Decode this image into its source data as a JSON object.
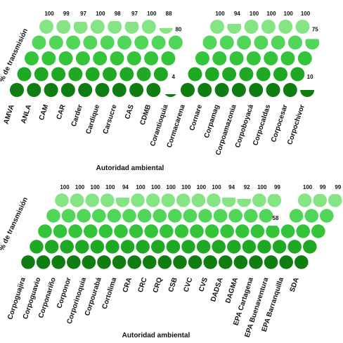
{
  "chart_data": [
    {
      "type": "dotcolumn",
      "xlabel": "Autoridad ambiental",
      "ylabel": "% de transmisión",
      "ylim": [
        0,
        100
      ],
      "colors": [
        "#0f7d12",
        "#1fa824",
        "#33c43a",
        "#52d65a",
        "#85e585"
      ],
      "categories": [
        "AMVA",
        "ANLA",
        "CAM",
        "CAR",
        "Carder",
        "Cardique",
        "Carsucre",
        "CAS",
        "CDMB",
        "Corantioquia",
        "Cormacarena",
        "Cornare",
        "Corpamag",
        "Corpoamazonia",
        "Corpoboyacá",
        "Corpocaldas",
        "Corpocesar",
        "Corpochivor"
      ],
      "values": [
        100,
        99,
        97,
        100,
        98,
        97,
        100,
        88,
        80,
        4,
        100,
        94,
        100,
        100,
        100,
        100,
        75,
        10
      ]
    },
    {
      "type": "dotcolumn",
      "xlabel": "Autoridad ambiental",
      "ylabel": "% de transmisión",
      "ylim": [
        0,
        100
      ],
      "colors": [
        "#0f7d12",
        "#1fa824",
        "#33c43a",
        "#52d65a",
        "#85e585"
      ],
      "categories": [
        "Corpoguajira",
        "Corpoguavio",
        "Corponariño",
        "Corponor",
        "Corporinoquia",
        "Corpourabá",
        "Cortolima",
        "CRA",
        "CRC",
        "CRQ",
        "CSB",
        "CVC",
        "CVS",
        "DADSA",
        "DAGMA",
        "EPA Cartagena",
        "EPA Buenaventura",
        "EPA Barranquilla",
        "SDA"
      ],
      "values": [
        100,
        100,
        100,
        100,
        94,
        100,
        100,
        100,
        100,
        100,
        100,
        94,
        92,
        100,
        99,
        58,
        100,
        99,
        99
      ]
    }
  ]
}
